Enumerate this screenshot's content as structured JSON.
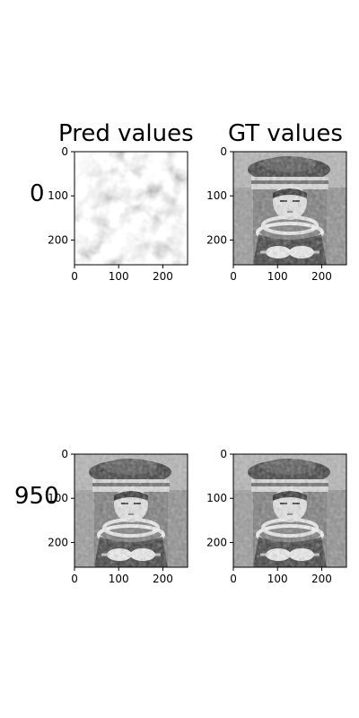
{
  "chart_data": {
    "type": "image-grid",
    "title": "",
    "columns": [
      "Pred values",
      "GT values"
    ],
    "rows": [
      "0",
      "950"
    ],
    "xlabel": "",
    "ylabel": "",
    "x_ticks": [
      0,
      100,
      200
    ],
    "y_ticks": [
      0,
      100,
      200
    ],
    "xlim": [
      0,
      256
    ],
    "ylim": [
      256,
      0
    ],
    "panels": [
      {
        "row": "0",
        "column": "Pred values",
        "content": "noise"
      },
      {
        "row": "0",
        "column": "GT values",
        "content": "portrait"
      },
      {
        "row": "950",
        "column": "Pred values",
        "content": "portrait"
      },
      {
        "row": "950",
        "column": "GT values",
        "content": "portrait"
      }
    ],
    "colormap": "gray",
    "grid": false
  }
}
